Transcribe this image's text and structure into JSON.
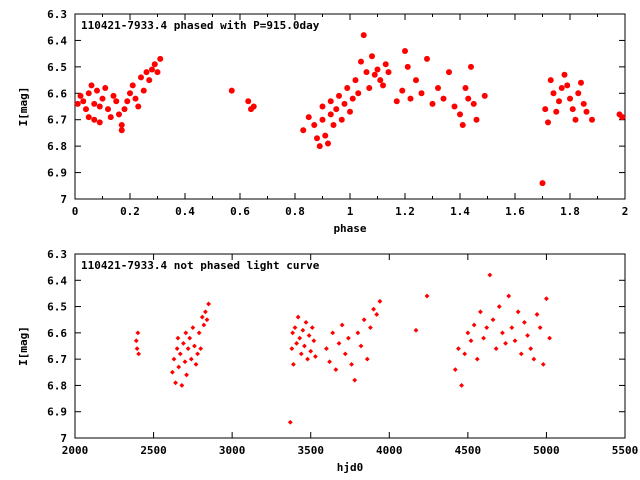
{
  "chart_data": [
    {
      "type": "scatter",
      "title": "110421-7933.4 phased with P=915.0day",
      "xlabel": "phase",
      "ylabel": "I[mag]",
      "xlim": [
        0,
        2
      ],
      "ylim": [
        6.3,
        7.0
      ],
      "y_inverted": true,
      "x_ticks": [
        "0",
        "0.2",
        "0.4",
        "0.6",
        "0.8",
        "1",
        "1.2",
        "1.4",
        "1.6",
        "1.8",
        "2"
      ],
      "y_ticks": [
        "6.3",
        "6.4",
        "6.5",
        "6.6",
        "6.7",
        "6.8",
        "6.9",
        "7"
      ],
      "marker": "filled-circle",
      "color": "#ff0000",
      "series": [
        {
          "x": [
            0.01,
            0.02,
            0.03,
            0.04,
            0.05,
            0.05,
            0.06,
            0.07,
            0.07,
            0.08,
            0.09,
            0.09,
            0.1,
            0.11,
            0.12,
            0.13,
            0.14,
            0.15,
            0.16,
            0.17,
            0.17,
            0.18,
            0.19,
            0.2,
            0.21,
            0.22,
            0.23,
            0.24,
            0.25,
            0.26,
            0.27,
            0.28,
            0.29,
            0.3,
            0.31,
            0.57,
            0.63,
            0.64,
            0.65,
            0.83,
            0.85,
            0.87,
            0.88,
            0.89,
            0.9,
            0.9,
            0.91,
            0.92,
            0.93,
            0.93,
            0.94,
            0.95,
            0.96,
            0.97,
            0.98,
            0.99,
            1.0,
            1.01,
            1.02,
            1.03,
            1.04,
            1.05,
            1.06,
            1.07,
            1.08,
            1.09,
            1.1,
            1.11,
            1.12,
            1.13,
            1.14,
            1.17,
            1.19,
            1.2,
            1.21,
            1.22,
            1.24,
            1.26,
            1.28,
            1.3,
            1.32,
            1.34,
            1.36,
            1.38,
            1.4,
            1.41,
            1.42,
            1.43,
            1.44,
            1.45,
            1.46,
            1.49,
            1.7,
            1.71,
            1.72,
            1.73,
            1.74,
            1.75,
            1.76,
            1.77,
            1.78,
            1.79,
            1.8,
            1.81,
            1.82,
            1.83,
            1.84,
            1.85,
            1.86,
            1.88,
            1.98,
            1.99
          ],
          "y": [
            6.64,
            6.61,
            6.63,
            6.66,
            6.6,
            6.69,
            6.57,
            6.64,
            6.7,
            6.59,
            6.65,
            6.71,
            6.62,
            6.58,
            6.66,
            6.69,
            6.61,
            6.63,
            6.68,
            6.72,
            6.74,
            6.66,
            6.63,
            6.6,
            6.57,
            6.62,
            6.65,
            6.54,
            6.59,
            6.52,
            6.55,
            6.51,
            6.49,
            6.52,
            6.47,
            6.59,
            6.63,
            6.66,
            6.65,
            6.74,
            6.69,
            6.72,
            6.77,
            6.8,
            6.65,
            6.7,
            6.76,
            6.79,
            6.63,
            6.68,
            6.72,
            6.66,
            6.61,
            6.7,
            6.64,
            6.58,
            6.67,
            6.62,
            6.55,
            6.6,
            6.48,
            6.38,
            6.52,
            6.58,
            6.46,
            6.53,
            6.51,
            6.55,
            6.57,
            6.49,
            6.52,
            6.63,
            6.59,
            6.44,
            6.5,
            6.62,
            6.55,
            6.6,
            6.47,
            6.64,
            6.58,
            6.62,
            6.52,
            6.65,
            6.68,
            6.72,
            6.58,
            6.62,
            6.5,
            6.64,
            6.7,
            6.61,
            6.94,
            6.66,
            6.71,
            6.55,
            6.6,
            6.67,
            6.63,
            6.58,
            6.53,
            6.57,
            6.62,
            6.66,
            6.7,
            6.6,
            6.56,
            6.64,
            6.67,
            6.7,
            6.68,
            6.69
          ]
        }
      ]
    },
    {
      "type": "scatter",
      "title": "110421-7933.4 not phased light curve",
      "xlabel": "hjd0",
      "ylabel": "I[mag]",
      "xlim": [
        2000,
        5500
      ],
      "ylim": [
        6.3,
        7.0
      ],
      "y_inverted": true,
      "x_ticks": [
        "2000",
        "2500",
        "3000",
        "3500",
        "4000",
        "4500",
        "5000",
        "5500"
      ],
      "y_ticks": [
        "6.3",
        "6.4",
        "6.5",
        "6.6",
        "6.7",
        "6.8",
        "6.9",
        "7"
      ],
      "marker": "small-diamond",
      "color": "#ff0000",
      "series": [
        {
          "x": [
            2390,
            2395,
            2400,
            2405,
            2620,
            2630,
            2640,
            2650,
            2655,
            2660,
            2670,
            2680,
            2690,
            2700,
            2705,
            2710,
            2720,
            2730,
            2740,
            2750,
            2760,
            2770,
            2780,
            2790,
            2800,
            2810,
            2820,
            2830,
            2840,
            2850,
            3370,
            3380,
            3385,
            3390,
            3400,
            3410,
            3420,
            3430,
            3440,
            3450,
            3460,
            3470,
            3480,
            3490,
            3500,
            3510,
            3520,
            3530,
            3600,
            3620,
            3640,
            3660,
            3680,
            3700,
            3720,
            3740,
            3760,
            3780,
            3800,
            3820,
            3840,
            3860,
            3880,
            3900,
            3920,
            3940,
            4170,
            4240,
            4420,
            4440,
            4460,
            4480,
            4500,
            4520,
            4540,
            4560,
            4580,
            4600,
            4620,
            4640,
            4660,
            4680,
            4700,
            4720,
            4740,
            4760,
            4780,
            4800,
            4820,
            4840,
            4860,
            4880,
            4900,
            4920,
            4940,
            4960,
            4980,
            5000,
            5020
          ],
          "y": [
            6.63,
            6.66,
            6.6,
            6.68,
            6.75,
            6.7,
            6.79,
            6.66,
            6.62,
            6.73,
            6.68,
            6.8,
            6.64,
            6.71,
            6.6,
            6.76,
            6.66,
            6.62,
            6.7,
            6.58,
            6.65,
            6.72,
            6.68,
            6.6,
            6.66,
            6.54,
            6.57,
            6.52,
            6.55,
            6.49,
            6.94,
            6.66,
            6.6,
            6.72,
            6.58,
            6.64,
            6.54,
            6.62,
            6.68,
            6.59,
            6.65,
            6.56,
            6.7,
            6.61,
            6.67,
            6.58,
            6.63,
            6.69,
            6.66,
            6.71,
            6.6,
            6.74,
            6.64,
            6.57,
            6.68,
            6.62,
            6.72,
            6.78,
            6.6,
            6.65,
            6.55,
            6.7,
            6.58,
            6.51,
            6.53,
            6.48,
            6.59,
            6.46,
            6.74,
            6.66,
            6.8,
            6.68,
            6.6,
            6.63,
            6.57,
            6.7,
            6.52,
            6.62,
            6.58,
            6.38,
            6.55,
            6.66,
            6.5,
            6.6,
            6.64,
            6.46,
            6.58,
            6.63,
            6.52,
            6.68,
            6.56,
            6.61,
            6.66,
            6.7,
            6.53,
            6.58,
            6.72,
            6.47,
            6.62
          ]
        }
      ]
    }
  ]
}
